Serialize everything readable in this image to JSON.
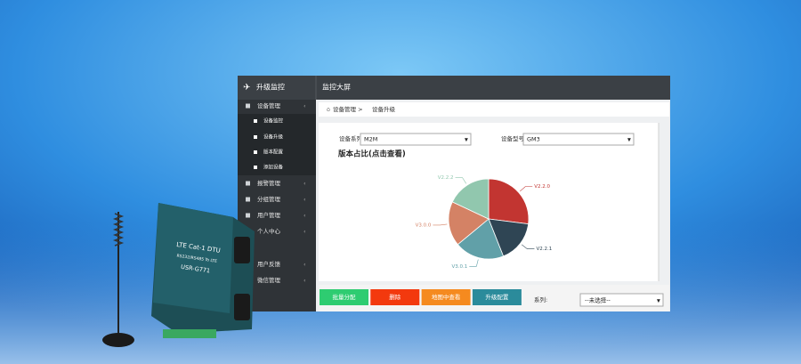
{
  "app": {
    "title": "升级监控",
    "top_tab": "监控大屏"
  },
  "sidebar": {
    "menu": [
      "设备管理",
      "报警管理",
      "分组管理",
      "用户管理",
      "个人中心",
      "用户反馈",
      "微信管理"
    ],
    "submenu": [
      "设备监控",
      "设备升级",
      "版本配置",
      "添加设备"
    ]
  },
  "breadcrumb": [
    "设备管理 >",
    "设备升级"
  ],
  "filters": [
    {
      "label": "设备系列:",
      "value": "M2M"
    },
    {
      "label": "设备型号",
      "value": "GM3"
    }
  ],
  "chart_data": {
    "type": "pie",
    "title": "版本占比(点击查看)",
    "categories": [
      "V2.2.0",
      "V2.2.1",
      "V3.0.1",
      "V3.0.0",
      "V2.2.2"
    ],
    "values": [
      27,
      17,
      20,
      18,
      18
    ],
    "colors": [
      "#c23531",
      "#2f4554",
      "#61a0a8",
      "#d48265",
      "#91c7ae"
    ]
  },
  "buttons": [
    {
      "label": "批量分配",
      "color": "#2ecc71"
    },
    {
      "label": "删除",
      "color": "#f3390e"
    },
    {
      "label": "地图中查看",
      "color": "#f58a1f"
    },
    {
      "label": "升级配置",
      "color": "#2b8b9b"
    }
  ],
  "series_filter": {
    "label": "系列:",
    "value": "--未选择--"
  },
  "device": {
    "lines": [
      "LTE Cat-1 DTU",
      "RS232/RS485 To LTE",
      "USR-G771"
    ]
  }
}
